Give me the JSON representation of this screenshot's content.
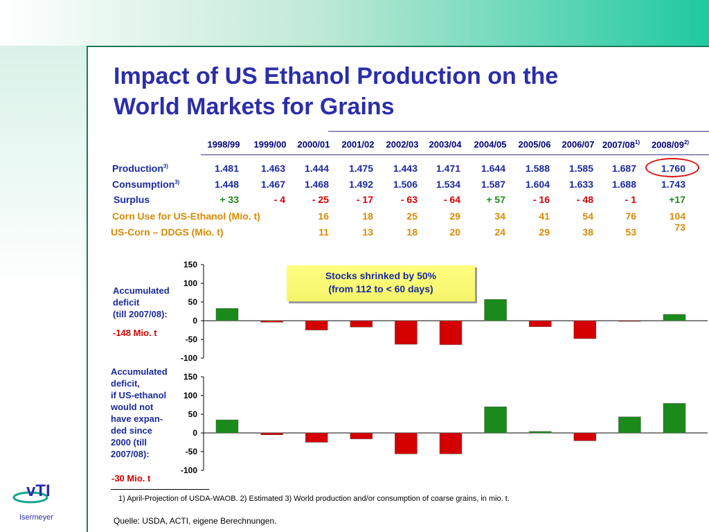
{
  "title_line1": "Impact of US Ethanol Production on the",
  "title_line2": "World Markets for Grains",
  "years": [
    "1998/99",
    "1999/00",
    "2000/01",
    "2001/02",
    "2002/03",
    "2003/04",
    "2004/05",
    "2005/06",
    "2006/07",
    "2007/08",
    "2008/09"
  ],
  "year_notes": {
    "9": "1)",
    "10": "2)"
  },
  "rows": {
    "production": {
      "label": "Production",
      "note": "3)",
      "values": [
        "1.481",
        "1.463",
        "1.444",
        "1.475",
        "1.443",
        "1.471",
        "1.644",
        "1.588",
        "1.585",
        "1.687",
        "1.760"
      ]
    },
    "consumption": {
      "label": "Consumption",
      "note": "3)",
      "values": [
        "1.448",
        "1.467",
        "1.468",
        "1.492",
        "1.506",
        "1.534",
        "1.587",
        "1.604",
        "1.633",
        "1.688",
        "1.743"
      ]
    },
    "surplus": {
      "label": "Surplus",
      "values": [
        "+ 33",
        "- 4",
        "- 25",
        "- 17",
        "- 63",
        "- 64",
        "+ 57",
        "- 16",
        "- 48",
        "- 1",
        "+17"
      ]
    },
    "corn_use": {
      "label": "Corn Use for US-Ethanol (Mio. t)",
      "values": [
        "16",
        "18",
        "25",
        "29",
        "34",
        "41",
        "54",
        "76",
        "104"
      ]
    },
    "ddgs": {
      "label": "US-Corn – DDGS (Mio. t)",
      "values": [
        "11",
        "13",
        "18",
        "20",
        "24",
        "29",
        "38",
        "53",
        "73"
      ]
    }
  },
  "chart1_side": {
    "line1": "Accumulated",
    "line2": "deficit",
    "line3": "(till 2007/08):",
    "value": "-148 Mio. t"
  },
  "chart2_side": {
    "lines": [
      "Accumulated",
      "deficit,",
      "if US-ethanol",
      "would not",
      "have expan-",
      "ded since",
      "2000 (till",
      "2007/08):"
    ],
    "value": "-30 Mio. t"
  },
  "callout": {
    "line1": "Stocks shrinked by 50%",
    "line2": "(from 112 to  < 60 days)"
  },
  "footnote": "1)  April-Projection of USDA-WAOB.  2) Estimated 3) World production and/or consumption of coarse grains, in mio. t.",
  "source": "Quelle: USDA, ACTI, eigene Berechnungen.",
  "author": "Isermeyer",
  "logo_text": "vTI",
  "colors": {
    "positive": "#1a8a1a",
    "negative": "#d40000",
    "title": "#2b2ea8"
  },
  "chart_data": [
    {
      "type": "bar",
      "categories": [
        "1998/99",
        "1999/00",
        "2000/01",
        "2001/02",
        "2002/03",
        "2003/04",
        "2004/05",
        "2005/06",
        "2006/07",
        "2007/08",
        "2008/09"
      ],
      "values": [
        33,
        -4,
        -25,
        -17,
        -63,
        -64,
        57,
        -16,
        -48,
        -1,
        17
      ],
      "ylim": [
        -100,
        150
      ],
      "yticks": [
        "150",
        "100",
        "50",
        "0",
        "-50",
        "-100"
      ],
      "grid": false
    },
    {
      "type": "bar",
      "categories": [
        "1998/99",
        "1999/00",
        "2000/01",
        "2001/02",
        "2002/03",
        "2003/04",
        "2004/05",
        "2005/06",
        "2006/07",
        "2007/08",
        "2008/09"
      ],
      "values": [
        35,
        -5,
        -25,
        -16,
        -56,
        -56,
        70,
        4,
        -21,
        43,
        79
      ],
      "ylim": [
        -100,
        150
      ],
      "yticks": [
        "150",
        "100",
        "50",
        "0",
        "-50",
        "-100"
      ],
      "grid": false
    }
  ]
}
